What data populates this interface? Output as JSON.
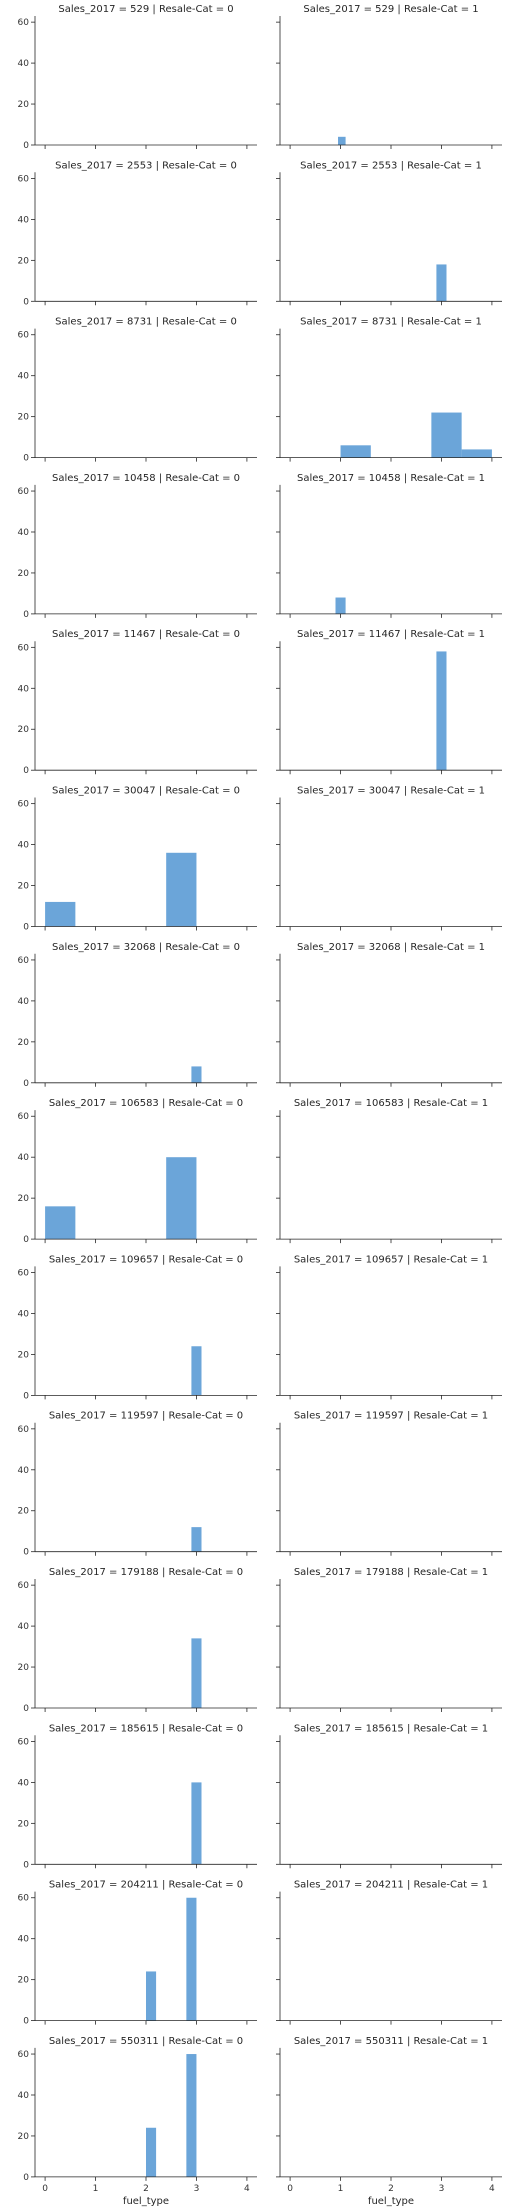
{
  "chart_data": {
    "type": "bar",
    "kind": "faceted-histogram",
    "row_variable": "Sales_2017",
    "col_variable": "Resale-Cat",
    "xlabel": "fuel_type",
    "ylabel": "",
    "xlim": [
      -0.2,
      4.2
    ],
    "ylim": [
      0,
      63
    ],
    "x_ticks": [
      0,
      1,
      2,
      3,
      4
    ],
    "y_ticks": [
      0,
      20,
      40,
      60
    ],
    "bar_color": "#5b9bd5",
    "panels": [
      {
        "title": "Sales_2017 = 529 | Resale-Cat = 0",
        "bars": []
      },
      {
        "title": "Sales_2017 = 529 | Resale-Cat = 1",
        "bars": [
          {
            "x0": 0.95,
            "x1": 1.1,
            "count": 4
          }
        ]
      },
      {
        "title": "Sales_2017 = 2553 | Resale-Cat = 0",
        "bars": []
      },
      {
        "title": "Sales_2017 = 2553 | Resale-Cat = 1",
        "bars": [
          {
            "x0": 2.9,
            "x1": 3.1,
            "count": 18
          }
        ]
      },
      {
        "title": "Sales_2017 = 8731 | Resale-Cat = 0",
        "bars": []
      },
      {
        "title": "Sales_2017 = 8731 | Resale-Cat = 1",
        "bars": [
          {
            "x0": 1.0,
            "x1": 1.6,
            "count": 6
          },
          {
            "x0": 2.8,
            "x1": 3.4,
            "count": 22
          },
          {
            "x0": 3.4,
            "x1": 4.0,
            "count": 4
          }
        ]
      },
      {
        "title": "Sales_2017 = 10458 | Resale-Cat = 0",
        "bars": []
      },
      {
        "title": "Sales_2017 = 10458 | Resale-Cat = 1",
        "bars": [
          {
            "x0": 0.9,
            "x1": 1.1,
            "count": 8
          }
        ]
      },
      {
        "title": "Sales_2017 = 11467 | Resale-Cat = 0",
        "bars": []
      },
      {
        "title": "Sales_2017 = 11467 | Resale-Cat = 1",
        "bars": [
          {
            "x0": 2.9,
            "x1": 3.1,
            "count": 58
          }
        ]
      },
      {
        "title": "Sales_2017 = 30047 | Resale-Cat = 0",
        "bars": [
          {
            "x0": 0.0,
            "x1": 0.6,
            "count": 12
          },
          {
            "x0": 2.4,
            "x1": 3.0,
            "count": 36
          }
        ]
      },
      {
        "title": "Sales_2017 = 30047 | Resale-Cat = 1",
        "bars": []
      },
      {
        "title": "Sales_2017 = 32068 | Resale-Cat = 0",
        "bars": [
          {
            "x0": 2.9,
            "x1": 3.1,
            "count": 8
          }
        ]
      },
      {
        "title": "Sales_2017 = 32068 | Resale-Cat = 1",
        "bars": []
      },
      {
        "title": "Sales_2017 = 106583 | Resale-Cat = 0",
        "bars": [
          {
            "x0": 0.0,
            "x1": 0.6,
            "count": 16
          },
          {
            "x0": 2.4,
            "x1": 3.0,
            "count": 40
          }
        ]
      },
      {
        "title": "Sales_2017 = 106583 | Resale-Cat = 1",
        "bars": []
      },
      {
        "title": "Sales_2017 = 109657 | Resale-Cat = 0",
        "bars": [
          {
            "x0": 2.9,
            "x1": 3.1,
            "count": 24
          }
        ]
      },
      {
        "title": "Sales_2017 = 109657 | Resale-Cat = 1",
        "bars": []
      },
      {
        "title": "Sales_2017 = 119597 | Resale-Cat = 0",
        "bars": [
          {
            "x0": 2.9,
            "x1": 3.1,
            "count": 12
          }
        ]
      },
      {
        "title": "Sales_2017 = 119597 | Resale-Cat = 1",
        "bars": []
      },
      {
        "title": "Sales_2017 = 179188 | Resale-Cat = 0",
        "bars": [
          {
            "x0": 2.9,
            "x1": 3.1,
            "count": 34
          }
        ]
      },
      {
        "title": "Sales_2017 = 179188 | Resale-Cat = 1",
        "bars": []
      },
      {
        "title": "Sales_2017 = 185615 | Resale-Cat = 0",
        "bars": [
          {
            "x0": 2.9,
            "x1": 3.1,
            "count": 40
          }
        ]
      },
      {
        "title": "Sales_2017 = 185615 | Resale-Cat = 1",
        "bars": []
      },
      {
        "title": "Sales_2017 = 204211 | Resale-Cat = 0",
        "bars": [
          {
            "x0": 2.0,
            "x1": 2.2,
            "count": 24
          },
          {
            "x0": 2.8,
            "x1": 3.0,
            "count": 60
          }
        ]
      },
      {
        "title": "Sales_2017 = 204211 | Resale-Cat = 1",
        "bars": []
      },
      {
        "title": "Sales_2017 = 550311 | Resale-Cat = 0",
        "bars": [
          {
            "x0": 2.0,
            "x1": 2.2,
            "count": 24
          },
          {
            "x0": 2.8,
            "x1": 3.0,
            "count": 60
          }
        ]
      },
      {
        "title": "Sales_2017 = 550311 | Resale-Cat = 1",
        "bars": []
      }
    ]
  }
}
